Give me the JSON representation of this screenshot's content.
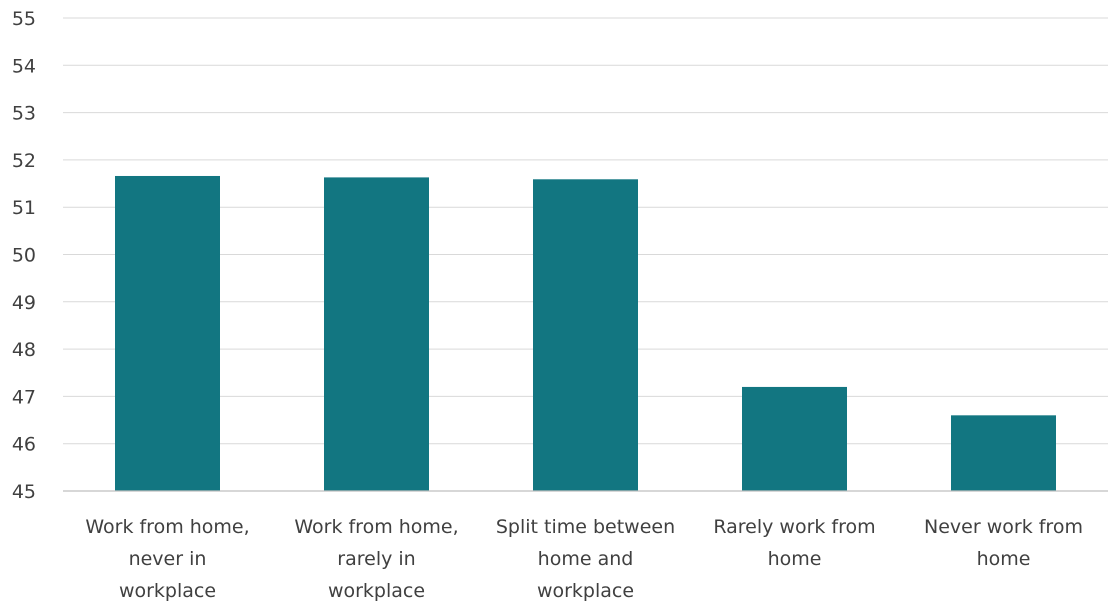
{
  "chart_data": {
    "type": "bar",
    "title": "",
    "xlabel": "",
    "ylabel": "",
    "categories": [
      [
        "Work from home,",
        "never in",
        "workplace"
      ],
      [
        "Work from home,",
        "rarely in",
        "workplace"
      ],
      [
        "Split time between",
        "home and",
        "workplace"
      ],
      [
        "Rarely work from",
        "home"
      ],
      [
        "Never work from",
        "home"
      ]
    ],
    "values": [
      51.66,
      51.63,
      51.59,
      47.2,
      46.6
    ],
    "ylim": [
      45,
      55
    ],
    "yticks": [
      45,
      46,
      47,
      48,
      49,
      50,
      51,
      52,
      53,
      54,
      55
    ],
    "grid": true,
    "legend": "none",
    "colors": {
      "bar": "#127681",
      "grid": "#d9d9d9",
      "text": "#404040"
    }
  }
}
